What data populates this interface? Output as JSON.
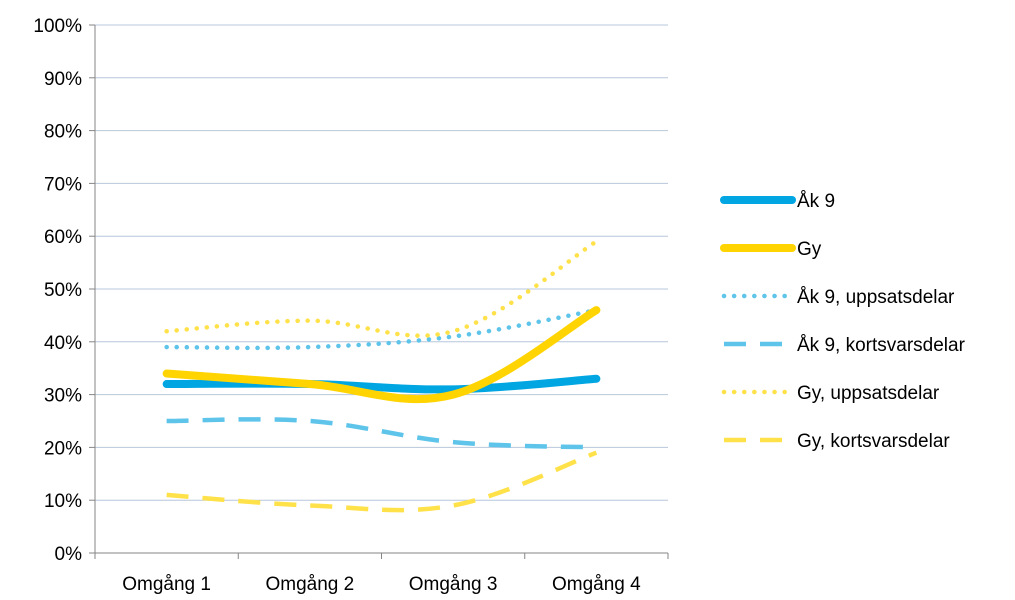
{
  "chart_data": {
    "type": "line",
    "title": "",
    "xlabel": "",
    "ylabel": "",
    "categories": [
      "Omgång 1",
      "Omgång 2",
      "Omgång 3",
      "Omgång 4"
    ],
    "ylim": [
      0,
      100
    ],
    "yticks": [
      "0%",
      "10%",
      "20%",
      "30%",
      "40%",
      "50%",
      "60%",
      "70%",
      "80%",
      "90%",
      "100%"
    ],
    "grid": true,
    "legend_position": "right",
    "series": [
      {
        "name": "Åk 9",
        "values": [
          32,
          32,
          31,
          33
        ],
        "color": "#00a6e2",
        "style": "solid-thick"
      },
      {
        "name": "Gy",
        "values": [
          34,
          32,
          30,
          46
        ],
        "color": "#ffd400",
        "style": "solid-thick"
      },
      {
        "name": "Åk 9, uppsatsdelar",
        "values": [
          39,
          39,
          41,
          46
        ],
        "color": "#5ec4ea",
        "style": "dotted"
      },
      {
        "name": "Åk 9, kortsvarsdelar",
        "values": [
          25,
          25,
          21,
          20
        ],
        "color": "#5ec4ea",
        "style": "dashed"
      },
      {
        "name": "Gy, uppsatsdelar",
        "values": [
          42,
          44,
          42,
          59
        ],
        "color": "#ffe14a",
        "style": "dotted"
      },
      {
        "name": "Gy, kortsvarsdelar",
        "values": [
          11,
          9,
          9,
          19
        ],
        "color": "#ffe14a",
        "style": "dashed"
      }
    ]
  }
}
